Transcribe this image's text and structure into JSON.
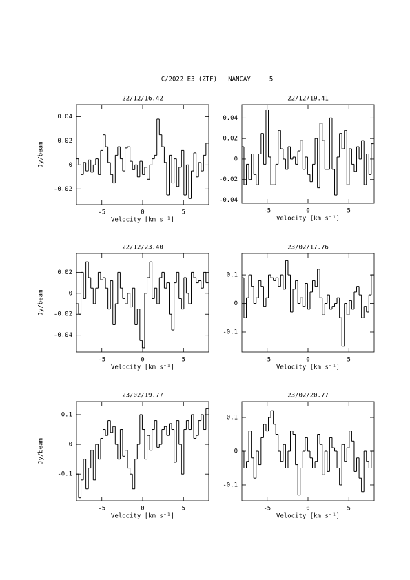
{
  "title": "C/2022 E3 (ZTF)   NANCAY     5",
  "chart_data": [
    {
      "type": "step",
      "title": "22/12/16.42",
      "xlabel": "Velocity [km s⁻¹]",
      "ylabel": "Jy/beam",
      "color": "#000000",
      "xlim": [
        -8.1,
        8.1
      ],
      "xticks": [
        -5,
        0,
        5
      ],
      "ylim": [
        -0.033,
        0.05
      ],
      "yticks": [
        -0.02,
        0,
        0.02,
        0.04
      ],
      "x": [
        -8.0,
        -7.7,
        -7.4,
        -7.1,
        -6.8,
        -6.5,
        -6.2,
        -5.9,
        -5.6,
        -5.3,
        -5.0,
        -4.7,
        -4.4,
        -4.1,
        -3.8,
        -3.5,
        -3.2,
        -2.9,
        -2.6,
        -2.3,
        -2.0,
        -1.7,
        -1.4,
        -1.1,
        -0.8,
        -0.5,
        -0.2,
        0.1,
        0.4,
        0.7,
        1.0,
        1.3,
        1.6,
        1.9,
        2.2,
        2.5,
        2.8,
        3.1,
        3.4,
        3.7,
        4.0,
        4.3,
        4.6,
        4.9,
        5.2,
        5.5,
        5.8,
        6.1,
        6.4,
        6.7,
        7.0,
        7.3,
        7.6,
        7.9
      ],
      "values": [
        0.005,
        0.0,
        -0.008,
        0.002,
        -0.005,
        0.004,
        -0.006,
        0.0,
        0.005,
        -0.008,
        0.012,
        0.025,
        0.015,
        0.002,
        -0.008,
        -0.015,
        0.008,
        0.015,
        0.005,
        -0.005,
        0.014,
        0.015,
        0.003,
        -0.004,
        0.0,
        -0.01,
        0.003,
        -0.008,
        -0.002,
        -0.012,
        0.0,
        0.005,
        0.008,
        0.038,
        0.025,
        0.015,
        0.002,
        -0.025,
        0.008,
        -0.015,
        0.005,
        -0.018,
        -0.002,
        0.012,
        -0.025,
        0.0,
        -0.028,
        -0.005,
        0.01,
        -0.01,
        0.002,
        -0.005,
        0.008,
        0.018
      ]
    },
    {
      "type": "step",
      "title": "22/12/19.41",
      "xlabel": "Velocity [km s⁻¹]",
      "color": "#000000",
      "xlim": [
        -8.1,
        8.1
      ],
      "xticks": [
        -5,
        0,
        5
      ],
      "ylim": [
        -0.043,
        0.053
      ],
      "yticks": [
        -0.04,
        -0.02,
        0,
        0.02,
        0.04
      ],
      "x": [
        -8.0,
        -7.7,
        -7.4,
        -7.1,
        -6.8,
        -6.5,
        -6.2,
        -5.9,
        -5.6,
        -5.3,
        -5.0,
        -4.7,
        -4.4,
        -4.1,
        -3.8,
        -3.5,
        -3.2,
        -2.9,
        -2.6,
        -2.3,
        -2.0,
        -1.7,
        -1.4,
        -1.1,
        -0.8,
        -0.5,
        -0.2,
        0.1,
        0.4,
        0.7,
        1.0,
        1.3,
        1.6,
        1.9,
        2.2,
        2.5,
        2.8,
        3.1,
        3.4,
        3.7,
        4.0,
        4.3,
        4.6,
        4.9,
        5.2,
        5.5,
        5.8,
        6.1,
        6.4,
        6.7,
        7.0,
        7.3,
        7.6,
        7.9
      ],
      "values": [
        0.012,
        -0.025,
        -0.005,
        -0.02,
        0.005,
        -0.015,
        -0.025,
        0.005,
        0.025,
        -0.005,
        0.048,
        0.002,
        -0.025,
        -0.025,
        -0.005,
        0.028,
        0.01,
        0.0,
        -0.01,
        0.012,
        0.0,
        0.002,
        -0.005,
        0.008,
        0.018,
        -0.01,
        0.002,
        -0.015,
        -0.022,
        -0.005,
        0.02,
        -0.028,
        0.035,
        0.018,
        -0.01,
        -0.01,
        0.04,
        -0.01,
        -0.035,
        0.002,
        0.025,
        0.01,
        0.028,
        -0.025,
        0.01,
        -0.005,
        -0.012,
        0.012,
        0.0,
        0.018,
        -0.025,
        0.005,
        -0.015,
        0.015
      ]
    },
    {
      "type": "step",
      "title": "22/12/23.40",
      "xlabel": "Velocity [km s⁻¹]",
      "ylabel": "Jy/beam",
      "color": "#000000",
      "xlim": [
        -8.1,
        8.1
      ],
      "xticks": [
        -5,
        0,
        5
      ],
      "ylim": [
        -0.056,
        0.038
      ],
      "yticks": [
        -0.04,
        -0.02,
        0,
        0.02
      ],
      "x": [
        -8.0,
        -7.7,
        -7.4,
        -7.1,
        -6.8,
        -6.5,
        -6.2,
        -5.9,
        -5.6,
        -5.3,
        -5.0,
        -4.7,
        -4.4,
        -4.1,
        -3.8,
        -3.5,
        -3.2,
        -2.9,
        -2.6,
        -2.3,
        -2.0,
        -1.7,
        -1.4,
        -1.1,
        -0.8,
        -0.5,
        -0.2,
        0.1,
        0.4,
        0.7,
        1.0,
        1.3,
        1.6,
        1.9,
        2.2,
        2.5,
        2.8,
        3.1,
        3.4,
        3.7,
        4.0,
        4.3,
        4.6,
        4.9,
        5.2,
        5.5,
        5.8,
        6.1,
        6.4,
        6.7,
        7.0,
        7.3,
        7.6,
        7.9
      ],
      "values": [
        -0.01,
        -0.02,
        0.02,
        -0.005,
        0.03,
        0.015,
        0.005,
        -0.01,
        0.005,
        0.02,
        0.013,
        0.015,
        0.005,
        -0.015,
        0.012,
        -0.03,
        -0.01,
        0.02,
        0.005,
        -0.005,
        -0.01,
        0.0,
        -0.013,
        0.005,
        -0.03,
        -0.015,
        -0.045,
        -0.052,
        0.0,
        0.015,
        0.03,
        -0.005,
        0.005,
        -0.01,
        0.015,
        0.02,
        0.005,
        0.01,
        -0.02,
        -0.035,
        0.01,
        0.02,
        -0.005,
        -0.015,
        0.015,
        0.0,
        -0.01,
        0.02,
        0.015,
        0.01,
        0.012,
        0.005,
        0.02,
        0.01
      ]
    },
    {
      "type": "step",
      "title": "23/02/17.76",
      "xlabel": "Velocity [km s⁻¹]",
      "color": "#000000",
      "xlim": [
        -8.1,
        8.1
      ],
      "xticks": [
        -5,
        0,
        5
      ],
      "ylim": [
        -0.17,
        0.175
      ],
      "yticks": [
        -0.1,
        0,
        0.1
      ],
      "x": [
        -8.0,
        -7.7,
        -7.4,
        -7.1,
        -6.8,
        -6.5,
        -6.2,
        -5.9,
        -5.6,
        -5.3,
        -5.0,
        -4.7,
        -4.4,
        -4.1,
        -3.8,
        -3.5,
        -3.2,
        -2.9,
        -2.6,
        -2.3,
        -2.0,
        -1.7,
        -1.4,
        -1.1,
        -0.8,
        -0.5,
        -0.2,
        0.1,
        0.4,
        0.7,
        1.0,
        1.3,
        1.6,
        1.9,
        2.2,
        2.5,
        2.8,
        3.1,
        3.4,
        3.7,
        4.0,
        4.3,
        4.6,
        4.9,
        5.2,
        5.5,
        5.8,
        6.1,
        6.4,
        6.7,
        7.0,
        7.3,
        7.6,
        7.9
      ],
      "values": [
        0.09,
        -0.05,
        0.02,
        0.1,
        0.06,
        0.0,
        0.02,
        0.08,
        0.06,
        -0.01,
        0.02,
        0.1,
        0.09,
        0.08,
        0.09,
        0.06,
        0.1,
        0.05,
        0.15,
        0.1,
        -0.03,
        0.05,
        0.08,
        0.0,
        0.02,
        -0.01,
        0.07,
        -0.02,
        0.04,
        0.08,
        0.06,
        0.12,
        0.02,
        -0.04,
        0.0,
        0.03,
        -0.02,
        -0.01,
        0.0,
        0.02,
        -0.05,
        -0.15,
        0.0,
        -0.04,
        0.01,
        -0.02,
        0.04,
        0.06,
        0.03,
        -0.05,
        -0.01,
        -0.03,
        0.03,
        0.1
      ]
    },
    {
      "type": "step",
      "title": "23/02/19.77",
      "xlabel": "Velocity [km s⁻¹]",
      "ylabel": "Jy/beam",
      "color": "#000000",
      "xlim": [
        -8.1,
        8.1
      ],
      "xticks": [
        -5,
        0,
        5
      ],
      "ylim": [
        -0.19,
        0.144
      ],
      "yticks": [
        -0.1,
        0,
        0.1
      ],
      "x": [
        -8.0,
        -7.7,
        -7.4,
        -7.1,
        -6.8,
        -6.5,
        -6.2,
        -5.9,
        -5.6,
        -5.3,
        -5.0,
        -4.7,
        -4.4,
        -4.1,
        -3.8,
        -3.5,
        -3.2,
        -2.9,
        -2.6,
        -2.3,
        -2.0,
        -1.7,
        -1.4,
        -1.1,
        -0.8,
        -0.5,
        -0.2,
        0.1,
        0.4,
        0.7,
        1.0,
        1.3,
        1.6,
        1.9,
        2.2,
        2.5,
        2.8,
        3.1,
        3.4,
        3.7,
        4.0,
        4.3,
        4.6,
        4.9,
        5.2,
        5.5,
        5.8,
        6.1,
        6.4,
        6.7,
        7.0,
        7.3,
        7.6,
        7.9
      ],
      "values": [
        -0.1,
        -0.18,
        -0.12,
        -0.05,
        -0.15,
        -0.08,
        -0.02,
        -0.12,
        0.0,
        -0.05,
        0.02,
        0.05,
        0.03,
        0.08,
        0.04,
        0.06,
        0.0,
        -0.05,
        0.05,
        -0.04,
        -0.02,
        -0.08,
        -0.1,
        -0.15,
        -0.05,
        0.0,
        0.1,
        0.05,
        -0.05,
        0.03,
        -0.02,
        0.05,
        0.08,
        -0.01,
        0.0,
        0.05,
        0.06,
        0.03,
        0.07,
        0.05,
        -0.06,
        0.08,
        0.0,
        -0.1,
        0.05,
        0.08,
        0.05,
        0.1,
        0.02,
        0.03,
        0.08,
        0.1,
        0.05,
        0.12
      ]
    },
    {
      "type": "step",
      "title": "23/02/20.77",
      "xlabel": "Velocity [km s⁻¹]",
      "color": "#000000",
      "xlim": [
        -8.1,
        8.1
      ],
      "xticks": [
        -5,
        0,
        5
      ],
      "ylim": [
        -0.147,
        0.147
      ],
      "yticks": [
        -0.1,
        0,
        0.1
      ],
      "x": [
        -8.0,
        -7.7,
        -7.4,
        -7.1,
        -6.8,
        -6.5,
        -6.2,
        -5.9,
        -5.6,
        -5.3,
        -5.0,
        -4.7,
        -4.4,
        -4.1,
        -3.8,
        -3.5,
        -3.2,
        -2.9,
        -2.6,
        -2.3,
        -2.0,
        -1.7,
        -1.4,
        -1.1,
        -0.8,
        -0.5,
        -0.2,
        0.1,
        0.4,
        0.7,
        1.0,
        1.3,
        1.6,
        1.9,
        2.2,
        2.5,
        2.8,
        3.1,
        3.4,
        3.7,
        4.0,
        4.3,
        4.6,
        4.9,
        5.2,
        5.5,
        5.8,
        6.1,
        6.4,
        6.7,
        7.0,
        7.3,
        7.6,
        7.9
      ],
      "values": [
        0.0,
        -0.05,
        -0.03,
        0.06,
        -0.02,
        -0.08,
        0.0,
        -0.04,
        0.04,
        0.08,
        0.06,
        0.1,
        0.12,
        0.08,
        0.05,
        0.0,
        -0.03,
        0.02,
        -0.05,
        0.0,
        0.06,
        0.05,
        -0.04,
        -0.13,
        -0.05,
        0.0,
        0.04,
        0.0,
        -0.02,
        -0.05,
        -0.03,
        0.05,
        0.02,
        -0.07,
        0.0,
        -0.06,
        0.04,
        0.01,
        0.0,
        -0.05,
        -0.1,
        0.02,
        -0.03,
        0.01,
        0.06,
        0.03,
        -0.06,
        -0.02,
        -0.08,
        -0.12,
        0.0,
        -0.03,
        -0.05,
        0.0
      ]
    }
  ]
}
